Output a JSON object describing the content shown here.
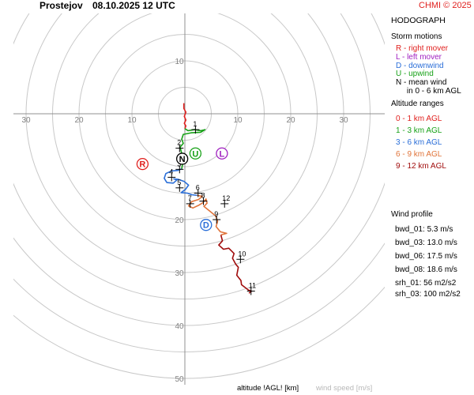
{
  "header": {
    "station": "Prostejov",
    "datetime": "08.10.2025 12 UTC",
    "credit": "CHMI © 2025"
  },
  "chart_data": {
    "type": "hodograph",
    "title": "HODOGRAPH",
    "rings": [
      5,
      10,
      15,
      20,
      25,
      30,
      35,
      40,
      45,
      50
    ],
    "axis_ticks": {
      "x_left": [
        "30",
        "20",
        "10"
      ],
      "x_right": [
        "10",
        "20",
        "30"
      ],
      "y_up": [
        "10"
      ],
      "y_down": [
        "20",
        "30",
        "40",
        "50"
      ]
    },
    "storm_motions": [
      {
        "id": "R",
        "u": -8.0,
        "v": -9.5,
        "color": "#e0201e"
      },
      {
        "id": "L",
        "u": 7.0,
        "v": -7.5,
        "color": "#a020c0"
      },
      {
        "id": "D",
        "u": 4.0,
        "v": -21.0,
        "color": "#2a6ed8"
      },
      {
        "id": "U",
        "u": 2.0,
        "v": -7.5,
        "color": "#17a117"
      },
      {
        "id": "N",
        "u": -0.5,
        "v": -8.5,
        "color": "#000000"
      }
    ],
    "height_markers": [
      {
        "label": "1",
        "u": 2.0,
        "v": -3.0
      },
      {
        "label": "2",
        "u": -1.0,
        "v": -6.5
      },
      {
        "label": "3",
        "u": -1.0,
        "v": -10.5
      },
      {
        "label": "4",
        "u": -2.5,
        "v": -12.0
      },
      {
        "label": "5",
        "u": -1.0,
        "v": -14.0
      },
      {
        "label": "6",
        "u": 2.5,
        "v": -15.0
      },
      {
        "label": "7",
        "u": 1.0,
        "v": -17.0
      },
      {
        "label": "8",
        "u": 3.5,
        "v": -16.5
      },
      {
        "label": "9",
        "u": 6.0,
        "v": -20.0
      },
      {
        "label": "10",
        "u": 10.5,
        "v": -27.5
      },
      {
        "label": "11",
        "u": 12.5,
        "v": -33.5
      },
      {
        "label": "12",
        "u": 7.5,
        "v": -17.0
      }
    ],
    "series": [
      {
        "name": "0 - 1 km AGL",
        "color": "#e0201e",
        "points": [
          [
            -0.2,
            2.0
          ],
          [
            -0.2,
            1.0
          ],
          [
            0.2,
            0.3
          ],
          [
            -0.1,
            -0.5
          ],
          [
            0.2,
            -1.2
          ],
          [
            -0.1,
            -1.8
          ],
          [
            0.2,
            -2.3
          ],
          [
            0.0,
            -2.8
          ]
        ]
      },
      {
        "name": "1 - 3 km AGL",
        "color": "#17a117",
        "points": [
          [
            0.0,
            -2.8
          ],
          [
            0.6,
            -3.2
          ],
          [
            1.8,
            -3.0
          ],
          [
            3.0,
            -3.2
          ],
          [
            3.8,
            -3.0
          ],
          [
            3.0,
            -3.5
          ],
          [
            1.2,
            -3.6
          ],
          [
            -0.3,
            -3.9
          ],
          [
            -0.6,
            -4.8
          ],
          [
            -0.3,
            -5.6
          ],
          [
            -0.9,
            -6.3
          ],
          [
            -0.6,
            -7.5
          ],
          [
            -0.7,
            -8.2
          ],
          [
            -0.4,
            -9.3
          ],
          [
            -0.6,
            -10.4
          ]
        ]
      },
      {
        "name": "3 - 6 km AGL",
        "color": "#2a6ed8",
        "points": [
          [
            -0.6,
            -10.4
          ],
          [
            -1.3,
            -10.7
          ],
          [
            -2.5,
            -10.8
          ],
          [
            -3.6,
            -11.3
          ],
          [
            -3.9,
            -12.2
          ],
          [
            -3.4,
            -13.0
          ],
          [
            -2.2,
            -13.1
          ],
          [
            -1.5,
            -12.5
          ],
          [
            -2.1,
            -12.3
          ],
          [
            -1.2,
            -12.4
          ],
          [
            -0.1,
            -12.8
          ],
          [
            0.7,
            -13.5
          ],
          [
            0.1,
            -14.3
          ],
          [
            -0.7,
            -14.9
          ],
          [
            0.5,
            -15.0
          ],
          [
            1.3,
            -15.3
          ],
          [
            2.3,
            -15.4
          ]
        ]
      },
      {
        "name": "6 - 9 km AGL",
        "color": "#e0743a",
        "points": [
          [
            2.3,
            -15.4
          ],
          [
            3.3,
            -15.6
          ],
          [
            2.6,
            -16.2
          ],
          [
            1.3,
            -16.6
          ],
          [
            0.7,
            -17.4
          ],
          [
            1.5,
            -17.8
          ],
          [
            2.6,
            -17.3
          ],
          [
            3.4,
            -16.8
          ],
          [
            4.0,
            -16.1
          ],
          [
            4.2,
            -16.9
          ],
          [
            3.6,
            -17.5
          ],
          [
            4.6,
            -18.3
          ],
          [
            5.8,
            -19.3
          ],
          [
            6.2,
            -20.3
          ],
          [
            5.9,
            -21.3
          ],
          [
            6.7,
            -22.3
          ],
          [
            7.9,
            -22.6
          ],
          [
            6.8,
            -22.9
          ]
        ]
      },
      {
        "name": "9 - 12 km AGL",
        "color": "#a00c0c",
        "points": [
          [
            6.8,
            -22.9
          ],
          [
            7.1,
            -24.0
          ],
          [
            6.4,
            -24.8
          ],
          [
            7.3,
            -25.6
          ],
          [
            8.3,
            -25.4
          ],
          [
            9.3,
            -26.4
          ],
          [
            9.0,
            -27.3
          ],
          [
            9.6,
            -28.4
          ],
          [
            10.1,
            -29.0
          ],
          [
            9.8,
            -30.5
          ],
          [
            10.6,
            -31.5
          ],
          [
            10.7,
            -32.3
          ],
          [
            12.0,
            -33.3
          ],
          [
            12.6,
            -33.5
          ],
          [
            12.1,
            -33.9
          ]
        ]
      }
    ]
  },
  "storm_motions_legend": {
    "title": "Storm motions",
    "items": [
      {
        "text": "R - right mover",
        "color": "#e0201e"
      },
      {
        "text": "L - left mover",
        "color": "#a020c0"
      },
      {
        "text": "D - downwind",
        "color": "#2a6ed8"
      },
      {
        "text": "U - upwind",
        "color": "#17a117"
      },
      {
        "text": "N - mean wind",
        "color": "#000000"
      },
      {
        "text": "     in 0 - 6 km AGL",
        "color": "#000000"
      }
    ]
  },
  "altitude_legend": {
    "title": "Altitude ranges",
    "items": [
      {
        "text": "0 - 1 km AGL",
        "color": "#e0201e"
      },
      {
        "text": "1 - 3 km AGL",
        "color": "#17a117"
      },
      {
        "text": "3 - 6 km AGL",
        "color": "#2a6ed8"
      },
      {
        "text": "6 - 9 km AGL",
        "color": "#e0743a"
      },
      {
        "text": "9 - 12 km AGL",
        "color": "#a00c0c"
      }
    ]
  },
  "wind_profile": {
    "title": "Wind profile",
    "items": [
      "bwd_01: 5.3 m/s",
      "bwd_03: 13.0 m/s",
      "bwd_06: 17.5 m/s",
      "bwd_08: 18.6 m/s",
      "srh_01: 56 m2/s2",
      "srh_03: 100 m2/s2"
    ]
  },
  "footer": {
    "altitude_label": "altitude !AGL! [km]",
    "speed_label": "wind speed [m/s]"
  }
}
